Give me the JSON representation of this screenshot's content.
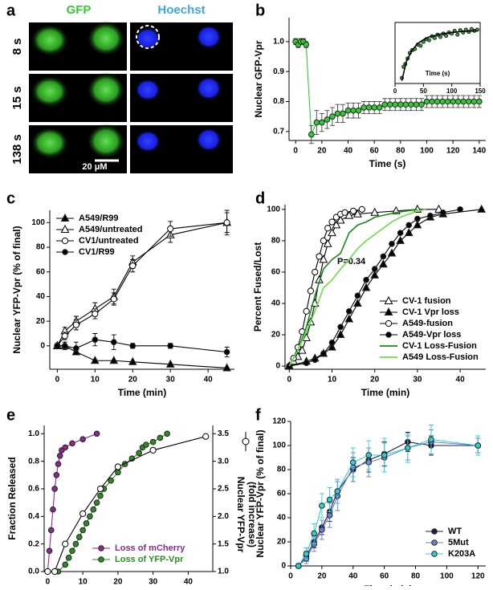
{
  "panel_a": {
    "label": "a",
    "columns": [
      "GFP",
      "Hoechst"
    ],
    "rows": [
      "8 s",
      "15 s",
      "138 s"
    ],
    "scale_bar": "20 μM"
  },
  "chart_data": [
    {
      "type": "line",
      "panel": "b",
      "xlabel": "Time (s)",
      "ylabel": "Nuclear GFP-Vpr",
      "xlim": [
        -5,
        145
      ],
      "xticks": [
        0,
        20,
        40,
        60,
        80,
        100,
        120,
        140
      ],
      "ylim": [
        0.67,
        1.08
      ],
      "yticks": [
        0.7,
        0.8,
        0.9,
        {
          "value": 1,
          "label": "1.0"
        }
      ],
      "x": [
        0,
        2,
        4,
        6,
        8,
        12,
        16,
        20,
        24,
        28,
        32,
        36,
        40,
        44,
        48,
        52,
        56,
        60,
        64,
        68,
        72,
        76,
        80,
        84,
        88,
        92,
        96,
        100,
        104,
        108,
        112,
        116,
        120,
        124,
        128,
        132,
        136,
        140
      ],
      "series": [
        {
          "color": "#33cc33",
          "marker": "circle",
          "filled": true,
          "error_color": "#444",
          "values": [
            1,
            0.99,
            1,
            1,
            0.99,
            0.69,
            0.73,
            0.73,
            0.74,
            0.75,
            0.76,
            0.76,
            0.77,
            0.77,
            0.77,
            0.78,
            0.78,
            0.78,
            0.78,
            0.79,
            0.79,
            0.79,
            0.79,
            0.79,
            0.79,
            0.79,
            0.79,
            0.8,
            0.8,
            0.8,
            0.8,
            0.8,
            0.8,
            0.8,
            0.8,
            0.8,
            0.8,
            0.8
          ],
          "errors": [
            0.01,
            0.01,
            0.01,
            0.01,
            0.01,
            0.03,
            0.04,
            0.03,
            0.03,
            0.03,
            0.03,
            0.03,
            0.025,
            0.025,
            0.025,
            0.02,
            0.02,
            0.02,
            0.02,
            0.02,
            0.02,
            0.02,
            0.02,
            0.02,
            0.02,
            0.02,
            0.02,
            0.02,
            0.02,
            0.02,
            0.02,
            0.02,
            0.02,
            0.02,
            0.02,
            0.02,
            0.02,
            0.02
          ]
        }
      ]
    },
    {
      "type": "line",
      "xlabel": "Time (s)",
      "xlim": [
        0,
        150
      ],
      "xticks": [
        0,
        50,
        100,
        150
      ],
      "ylim": [
        0,
        1.1
      ],
      "series": [
        {
          "color": "#33aa33",
          "marker": "circle",
          "filled": true,
          "line": false,
          "x": [
            12,
            15,
            18,
            22,
            26,
            30,
            35,
            40,
            45,
            50,
            55,
            60,
            65,
            70,
            75,
            80,
            85,
            90,
            95,
            100,
            105,
            110,
            115,
            120,
            125,
            130,
            135,
            140,
            145
          ],
          "values": [
            0.1,
            0.3,
            0.35,
            0.45,
            0.55,
            0.6,
            0.62,
            0.7,
            0.68,
            0.75,
            0.8,
            0.78,
            0.85,
            0.82,
            0.88,
            0.84,
            0.9,
            0.86,
            0.92,
            0.9,
            0.95,
            0.88,
            0.96,
            0.92,
            0.97,
            0.93,
            0.98,
            0.95,
            0.97
          ]
        },
        {
          "color": "#000000",
          "marker": "none",
          "x": [
            12,
            20,
            30,
            40,
            50,
            60,
            80,
            100,
            120,
            145
          ],
          "values": [
            0.05,
            0.4,
            0.6,
            0.72,
            0.79,
            0.84,
            0.89,
            0.92,
            0.94,
            0.95
          ]
        }
      ]
    },
    {
      "type": "line",
      "panel": "c",
      "xlabel": "Time (min)",
      "ylabel": "Nuclear YFP-Vpr (% of final)",
      "xlim": [
        -2,
        47
      ],
      "xticks": [
        0,
        10,
        20,
        30,
        40
      ],
      "ylim": [
        -19,
        110
      ],
      "yticks": [
        0,
        20,
        40,
        60,
        80,
        100
      ],
      "legend": "upper left",
      "x": [
        0,
        2,
        5,
        10,
        15,
        20,
        30,
        45
      ],
      "series": [
        {
          "name": "A549/R99",
          "color": "#000000",
          "marker": "triangle",
          "filled": true,
          "values": [
            0,
            0,
            -5,
            -12,
            -12,
            -13,
            -15,
            -18
          ]
        },
        {
          "name": "A549/untreated",
          "color": "#000000",
          "marker": "triangle",
          "filled": false,
          "values": [
            0,
            12,
            20,
            30,
            40,
            68,
            90,
            100
          ],
          "errors": [
            0,
            3,
            4,
            5,
            6,
            5,
            6,
            10
          ]
        },
        {
          "name": "CV1/untreated",
          "color": "#000000",
          "marker": "circle",
          "filled": false,
          "values": [
            0,
            8,
            17,
            26,
            38,
            65,
            95,
            100
          ],
          "errors": [
            0,
            3,
            4,
            4,
            5,
            5,
            6,
            8
          ]
        },
        {
          "name": "CV1/R99",
          "color": "#000000",
          "marker": "circle",
          "filled": true,
          "values": [
            0,
            0,
            -2,
            5,
            3,
            0,
            0,
            -5
          ],
          "errors": [
            2,
            3,
            5,
            5,
            6,
            2,
            2,
            4
          ]
        }
      ]
    },
    {
      "type": "line",
      "panel": "d",
      "xlabel": "Time (min)",
      "ylabel": "Percent Fused/Lost",
      "annotation": "P=0.34",
      "xlim": [
        -1,
        46
      ],
      "xticks": [
        0,
        10,
        20,
        30,
        40
      ],
      "ylim": [
        -2,
        103
      ],
      "yticks": [
        0,
        20,
        40,
        60,
        80,
        100
      ],
      "legend": "lower right",
      "series": [
        {
          "name": "CV-1 fusion",
          "color": "#000000",
          "marker": "triangle",
          "filled": false,
          "x": [
            0,
            1,
            2,
            3,
            4,
            5,
            6,
            7,
            8,
            9,
            10,
            11,
            12,
            14,
            16,
            20,
            25,
            30,
            35
          ],
          "values": [
            0,
            3,
            6,
            10,
            18,
            28,
            40,
            55,
            68,
            78,
            85,
            90,
            93,
            96,
            97,
            98,
            99,
            100,
            100
          ]
        },
        {
          "name": "CV-1 Vpr loss",
          "color": "#000000",
          "marker": "triangle",
          "filled": true,
          "x": [
            0,
            4,
            6,
            8,
            10,
            12,
            14,
            16,
            18,
            20,
            22,
            24,
            26,
            28,
            30,
            33,
            36,
            45
          ],
          "values": [
            0,
            3,
            5,
            8,
            12,
            20,
            30,
            40,
            50,
            58,
            65,
            72,
            80,
            85,
            90,
            95,
            97,
            100
          ]
        },
        {
          "name": "A549-fusion",
          "color": "#000000",
          "marker": "circle",
          "filled": false,
          "x": [
            0,
            1,
            2,
            3,
            4,
            5,
            6,
            7,
            8,
            9,
            10,
            11,
            12,
            13,
            15,
            17
          ],
          "values": [
            0,
            5,
            12,
            22,
            35,
            48,
            60,
            70,
            80,
            88,
            92,
            95,
            97,
            98,
            99,
            100
          ]
        },
        {
          "name": "A549-Vpr loss",
          "color": "#000000",
          "marker": "circle",
          "filled": true,
          "x": [
            0,
            4,
            6,
            8,
            10,
            12,
            14,
            16,
            18,
            20,
            22,
            24,
            26,
            28,
            30,
            33,
            36,
            40
          ],
          "values": [
            0,
            2,
            4,
            8,
            15,
            25,
            35,
            45,
            55,
            62,
            70,
            78,
            85,
            90,
            94,
            96,
            98,
            100
          ]
        },
        {
          "name": "CV-1 Loss-Fusion",
          "color": "#1a8a1a",
          "marker": "none",
          "x": [
            0,
            2,
            4,
            6,
            8,
            10,
            12,
            14,
            16,
            18,
            20,
            25,
            30
          ],
          "values": [
            0,
            10,
            25,
            45,
            62,
            68,
            72,
            85,
            90,
            92,
            95,
            98,
            100
          ]
        },
        {
          "name": "A549 Loss-Fusion",
          "color": "#66e040",
          "marker": "none",
          "x": [
            0,
            2,
            4,
            6,
            8,
            10,
            12,
            14,
            16,
            18,
            20,
            22,
            24,
            26,
            28,
            30,
            32
          ],
          "values": [
            0,
            10,
            22,
            35,
            50,
            55,
            62,
            68,
            75,
            80,
            84,
            88,
            92,
            95,
            97,
            99,
            100
          ]
        }
      ]
    },
    {
      "type": "line",
      "panel": "e",
      "xlabel": "Time (min)",
      "ylabel": "Fraction Released",
      "y2label": [
        "Nuclear YFP-Vpr",
        "(fold increase)"
      ],
      "xlim": [
        -1,
        47
      ],
      "xticks": [
        0,
        10,
        20,
        30,
        40
      ],
      "ylim": [
        0,
        1.06
      ],
      "yticks": [
        {
          "value": 0,
          "label": "0.0"
        },
        0.2,
        0.4,
        0.6,
        0.8,
        {
          "value": 1,
          "label": "1.0"
        }
      ],
      "y2lim": [
        1,
        3.65
      ],
      "y2ticks": [
        {
          "value": 1,
          "label": "1.0"
        },
        1.5,
        {
          "value": 2,
          "label": "2.0"
        },
        2.5,
        {
          "value": 3,
          "label": "3.0"
        },
        3.5
      ],
      "legend": "lower right",
      "series": [
        {
          "name": "Loss of mCherry",
          "color": "#8b2a8b",
          "marker": "circle",
          "filled": true,
          "x": [
            0,
            0.5,
            1,
            1.5,
            2,
            2.5,
            3,
            3.5,
            4,
            5,
            7,
            10,
            14
          ],
          "values": [
            0,
            0.15,
            0.3,
            0.45,
            0.6,
            0.7,
            0.78,
            0.84,
            0.88,
            0.9,
            0.93,
            0.96,
            1
          ]
        },
        {
          "name": "Loss of YFP-Vpr",
          "color": "#2e8b22",
          "marker": "circle",
          "filled": true,
          "x": [
            3,
            5,
            6,
            7,
            8,
            9,
            10,
            11,
            12,
            13,
            14,
            15,
            16,
            18,
            20,
            22,
            24,
            26,
            27,
            28,
            30,
            32,
            34
          ],
          "values": [
            0,
            0.05,
            0.1,
            0.15,
            0.2,
            0.25,
            0.3,
            0.35,
            0.4,
            0.45,
            0.5,
            0.55,
            0.6,
            0.66,
            0.72,
            0.78,
            0.82,
            0.86,
            0.9,
            0.92,
            0.94,
            0.97,
            1
          ]
        },
        {
          "color": "#000000",
          "marker": "circle",
          "filled": false,
          "axis": "y2",
          "x": [
            0,
            2,
            5,
            10,
            15,
            20,
            30,
            45
          ],
          "values": [
            1,
            1,
            1.5,
            2.05,
            2.5,
            2.9,
            3.2,
            3.45
          ]
        }
      ]
    },
    {
      "type": "line",
      "panel": "f",
      "xlabel": "Time (min)",
      "ylabel": "Nuclear YFP-Vpr (% of final)",
      "xlim": [
        0,
        125
      ],
      "xticks": [
        0,
        20,
        40,
        60,
        80,
        100,
        120
      ],
      "ylim": [
        0,
        120
      ],
      "yticks": [
        0,
        20,
        40,
        60,
        80,
        100,
        120
      ],
      "legend": "lower right",
      "x": [
        5,
        10,
        15,
        20,
        25,
        30,
        40,
        50,
        60,
        75,
        90,
        120
      ],
      "series": [
        {
          "name": "WT",
          "color": "#1c1c48",
          "marker": "circle",
          "filled": true,
          "values": [
            0,
            8,
            20,
            32,
            45,
            62,
            80,
            88,
            93,
            103,
            100,
            100
          ],
          "errors": [
            2,
            4,
            5,
            6,
            8,
            10,
            10,
            10,
            10,
            8,
            8,
            6
          ]
        },
        {
          "name": "5Mut",
          "color": "#6a80d8",
          "marker": "circle",
          "filled": true,
          "values": [
            0,
            6,
            18,
            30,
            42,
            58,
            82,
            86,
            90,
            98,
            103,
            100
          ],
          "errors": [
            2,
            4,
            6,
            8,
            10,
            12,
            12,
            12,
            12,
            10,
            10,
            6
          ]
        },
        {
          "name": "K203A",
          "color": "#30d0d0",
          "marker": "circle",
          "filled": true,
          "values": [
            0,
            10,
            27,
            50,
            55,
            62,
            86,
            92,
            92,
            98,
            105,
            100
          ],
          "errors": [
            2,
            5,
            8,
            10,
            10,
            10,
            12,
            12,
            14,
            12,
            12,
            8
          ]
        }
      ]
    }
  ]
}
